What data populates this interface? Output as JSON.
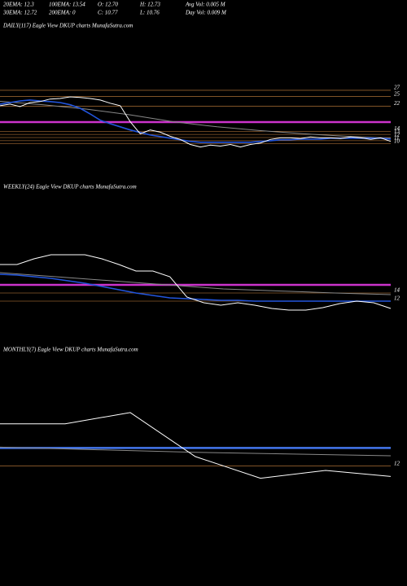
{
  "header": {
    "rows": [
      [
        "20EMA: 12.3",
        "100EMA: 13.54",
        "O: 12.70",
        "H: 12.73",
        "Avg Vol: 0.005 M"
      ],
      [
        "30EMA: 12.72",
        "200EMA: 0",
        "C: 10.77",
        "L: 10.76",
        "Day Vol: 0.009 M"
      ]
    ]
  },
  "chart_data": [
    {
      "type": "line",
      "title": "DAILY(117) Eagle  View  DKUP charts MunafaSutra.com",
      "ylim": [
        4,
        45.3
      ],
      "yticks": [
        27,
        25,
        22,
        14,
        13,
        12,
        11,
        10
      ],
      "tick_color": "#cd853f",
      "bands": [
        {
          "value": 16.9,
          "color": "#cc33cc"
        }
      ],
      "series": [
        {
          "color": "#888888",
          "values": [
            23.5,
            22.4,
            21,
            19.2,
            17,
            15.4,
            14.2,
            13.2,
            12.4,
            11.8
          ]
        },
        {
          "color": "#2255dd",
          "values": [
            22.6,
            23.1,
            23.6,
            23.9,
            23.6,
            23.4,
            23.1,
            22.4,
            21.3,
            19.5,
            17.5,
            16.4,
            15.4,
            14.4,
            13.6,
            12.8,
            12.3,
            11.8,
            11.3,
            10.8,
            10.5,
            10.5,
            10.5,
            10.5,
            10.5,
            10.5,
            10.8,
            11,
            11.3,
            11.3,
            11.5,
            11.5,
            11.5,
            11.8,
            11.8,
            11.8,
            11.8,
            11.8,
            11.8,
            11.5
          ]
        },
        {
          "color": "#ffffff",
          "values": [
            22.1,
            22.6,
            21.8,
            23.1,
            23.4,
            24.2,
            24.4,
            24.9,
            24.7,
            24.4,
            23.9,
            22.9,
            22.1,
            17,
            13.2,
            14.4,
            13.7,
            12.4,
            11.4,
            9.8,
            9,
            9.6,
            9.3,
            9.8,
            9,
            9.8,
            10.3,
            11.4,
            11.9,
            11.9,
            11.7,
            12.2,
            11.9,
            11.9,
            11.7,
            12.2,
            11.9,
            11.4,
            11.9,
            10.8
          ]
        }
      ]
    },
    {
      "type": "line",
      "title": "WEEKLY(24) Eagle  View  DKUP charts MunafaSutra.com",
      "ylim": [
        2,
        38.4
      ],
      "yticks": [
        14,
        12
      ],
      "tick_color": "#cd853f",
      "bands": [
        {
          "value": 16,
          "color": "#cc33cc"
        }
      ],
      "series": [
        {
          "color": "#888888",
          "values": [
            19,
            18,
            17,
            16,
            15,
            14.5,
            14,
            13.6
          ]
        },
        {
          "color": "#2255dd",
          "values": [
            18.6,
            18.4,
            18,
            17.6,
            17,
            16.4,
            15.6,
            14.8,
            14,
            13.4,
            12.8,
            12.6,
            12.4,
            12.2,
            12.2,
            12,
            12,
            12,
            12,
            12,
            12,
            12,
            12,
            12
          ]
        },
        {
          "color": "#ffffff",
          "values": [
            21,
            21,
            22.4,
            23.4,
            23.4,
            23.4,
            22.4,
            21,
            19.4,
            19.4,
            18,
            13,
            11.6,
            11,
            11.6,
            11,
            10.2,
            9.8,
            9.8,
            10.4,
            11.4,
            12,
            11.6,
            10.2
          ]
        }
      ]
    },
    {
      "type": "line",
      "title": "MONTHLY(7) Eagle  View  DKUP charts MunafaSutra.com",
      "ylim": [
        0,
        24.7
      ],
      "yticks": [
        12
      ],
      "tick_color": "#cd853f",
      "bands": [
        {
          "value": 14.1,
          "color": "#4477ee"
        }
      ],
      "series": [
        {
          "color": "#888888",
          "values": [
            14.2,
            13.9,
            13.6,
            13.4,
            13.2
          ]
        },
        {
          "color": "#ffffff",
          "values": [
            16.9,
            16.9,
            18.2,
            13.1,
            10.6,
            11.5,
            10.8
          ]
        }
      ]
    }
  ]
}
